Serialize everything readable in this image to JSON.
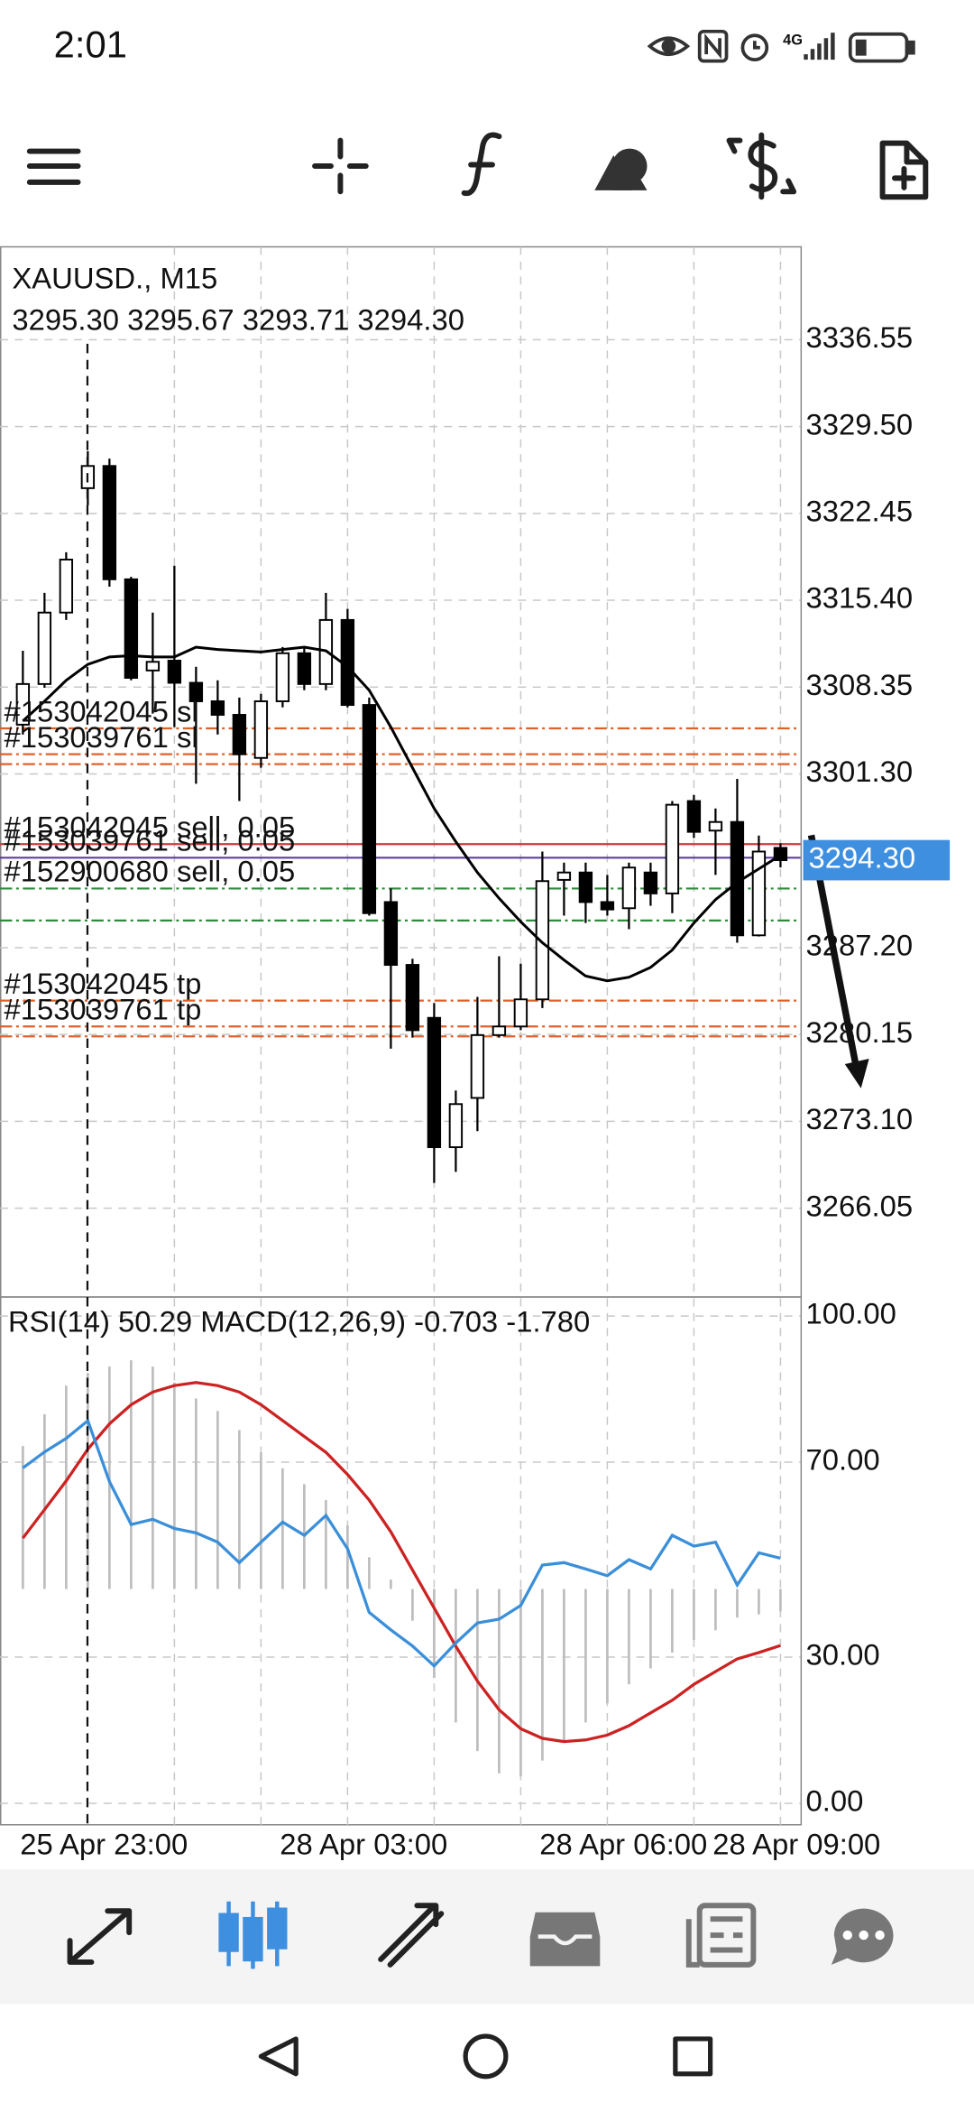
{
  "status_bar": {
    "time": "2:01",
    "network": "4G"
  },
  "chart": {
    "type": "candlestick",
    "symbol": "XAUUSD., M15",
    "ohlc": "3295.30 3295.67 3293.71 3294.30",
    "ylim": [
      3258.84,
      3344.09
    ],
    "yticks": [
      3336.55,
      {
        "value": 3329.5,
        "label": "3329.50"
      },
      3322.45,
      {
        "value": 3315.4,
        "label": "3315.40"
      },
      3308.35,
      {
        "value": 3301.3,
        "label": "3301.30"
      },
      {
        "value": 3287.2,
        "label": "3287.20"
      },
      3280.15,
      {
        "value": 3273.1,
        "label": "3273.10"
      },
      3266.05
    ],
    "current_price": {
      "value": 3294.3,
      "label": "3294.30",
      "color": "#3f8fe0"
    },
    "open": [
      3305.3,
      3308.6,
      3314.4,
      3324.5,
      3326.3,
      3317.1,
      3309.7,
      3310.5,
      3308.7,
      3307.2,
      3306.1,
      3302.6,
      3307.2,
      3311.1,
      3308.6,
      3313.8,
      3306.9,
      3290.9,
      3285.8,
      3281.5,
      3271.0,
      3275.0,
      3280.1,
      3280.8,
      3283.0,
      3292.7,
      3293.3,
      3290.9,
      3290.4,
      3293.3,
      3291.6,
      3299.1,
      3296.7,
      3297.4,
      3288.2,
      3295.3
    ],
    "high": [
      3311.3,
      3316.0,
      3319.3,
      3327.5,
      3326.9,
      3317.3,
      3314.4,
      3318.2,
      3310.0,
      3308.9,
      3307.5,
      3307.8,
      3311.6,
      3311.6,
      3316.0,
      3314.7,
      3307.5,
      3292.0,
      3286.3,
      3282.7,
      3275.6,
      3283.2,
      3286.5,
      3285.9,
      3295.0,
      3294.1,
      3294.1,
      3293.1,
      3294.1,
      3294.1,
      3299.1,
      3299.6,
      3298.5,
      3300.9,
      3296.3,
      3295.67
    ],
    "low": [
      3304.5,
      3308.3,
      3313.8,
      3323.1,
      3316.5,
      3308.9,
      3306.2,
      3305.1,
      3300.5,
      3304.5,
      3299.1,
      3301.8,
      3306.7,
      3308.1,
      3308.1,
      3306.7,
      3289.8,
      3279.0,
      3279.9,
      3268.1,
      3269.0,
      3272.3,
      3279.9,
      3280.5,
      3282.3,
      3289.8,
      3289.2,
      3289.8,
      3288.7,
      3290.6,
      3290.0,
      3296.1,
      3293.1,
      3287.6,
      3288.1,
      3293.71
    ],
    "close": [
      3308.6,
      3314.4,
      3318.7,
      3326.3,
      3317.1,
      3309.1,
      3310.4,
      3308.7,
      3307.2,
      3306.1,
      3302.9,
      3307.2,
      3311.1,
      3308.6,
      3313.8,
      3306.9,
      3290.0,
      3285.8,
      3280.5,
      3271.0,
      3274.5,
      3280.1,
      3280.8,
      3283.0,
      3292.6,
      3293.3,
      3290.9,
      3290.3,
      3293.7,
      3291.6,
      3298.8,
      3296.6,
      3297.4,
      3288.2,
      3295.0,
      3294.3
    ],
    "ma": {
      "color": "#000000",
      "values": [
        3305.6,
        3307.2,
        3308.9,
        3310.2,
        3310.8,
        3310.9,
        3310.8,
        3310.8,
        3311.6,
        3311.4,
        3311.3,
        3311.2,
        3311.4,
        3311.6,
        3311.3,
        3310.0,
        3308.1,
        3305.1,
        3301.8,
        3298.5,
        3295.8,
        3293.3,
        3291.2,
        3289.3,
        3287.6,
        3286.2,
        3284.9,
        3284.5,
        3284.8,
        3285.6,
        3287.0,
        3289.2,
        3291.1,
        3292.5,
        3293.6,
        3294.7
      ]
    },
    "orders": [
      {
        "label": "#153042045 sl",
        "price": 3305.0,
        "color": "#e0602a",
        "style": "dashdot"
      },
      {
        "label": "#153039761 sl",
        "price": 3302.9,
        "color": "#e0602a",
        "style": "dashdot"
      },
      {
        "price": 3302.1,
        "color": "#e0602a",
        "style": "dashdot"
      },
      {
        "label": "#153042045 sell, 0.05",
        "price": 3295.6,
        "color": "#c93b3b",
        "style": "solid"
      },
      {
        "label": "#153039761 sell, 0.05",
        "price": 3294.5,
        "color": "#5b3fa0",
        "style": "solid"
      },
      {
        "label": "#152900680 sell, 0.05",
        "price": 3292.0,
        "color": "#2e8b3a",
        "style": "dashdot"
      },
      {
        "price": 3289.4,
        "color": "#2e8b3a",
        "style": "dashdot"
      },
      {
        "label": "#153042045 tp",
        "price": 3282.9,
        "color": "#e0602a",
        "style": "dashdot"
      },
      {
        "label": "#153039761 tp",
        "price": 3280.8,
        "color": "#e0602a",
        "style": "dashdot"
      },
      {
        "price": 3280.0,
        "color": "#e0602a",
        "style": "dashdot"
      }
    ],
    "x_labels": [
      {
        "candle": 3,
        "label": "25 Apr 23:00"
      },
      {
        "candle": 15,
        "label": "28 Apr 03:00"
      },
      {
        "candle": 27,
        "label": "28 Apr 06:00"
      },
      {
        "candle": 35,
        "label": "28 Apr 09:00"
      }
    ]
  },
  "indicator": {
    "title": "RSI(14) 50.29 MACD(12,26,9) -0.703 -1.780",
    "ylim": [
      -4.4,
      103.9
    ],
    "yticks": [
      {
        "value": 100,
        "label": "100.00"
      },
      {
        "value": 70,
        "label": "70.00"
      },
      {
        "value": 30,
        "label": "30.00"
      },
      {
        "value": 0,
        "label": "0.00"
      }
    ],
    "rsi": {
      "color": "#3b8fd9",
      "values": [
        68.8,
        72.1,
        74.9,
        78.5,
        66.0,
        57.2,
        58.3,
        56.4,
        55.5,
        53.6,
        49.4,
        53.6,
        57.7,
        55.0,
        59.1,
        52.2,
        39.2,
        35.6,
        32.3,
        28.2,
        32.9,
        37.0,
        37.8,
        40.6,
        48.9,
        49.4,
        48.1,
        46.7,
        50.0,
        48.1,
        55.0,
        52.8,
        53.6,
        44.8,
        51.4,
        50.29
      ]
    },
    "macd": {
      "ylim": [
        -7.42,
        9.19
      ],
      "histogram_color": "#bdbdbd",
      "signal_color": "#cc2222",
      "histogram": [
        4.5,
        5.5,
        6.4,
        6.8,
        7.0,
        7.2,
        7.0,
        6.5,
        6.0,
        5.6,
        5.0,
        4.3,
        3.8,
        3.3,
        2.8,
        2.0,
        1.0,
        0.3,
        -1.0,
        -2.8,
        -4.2,
        -5.1,
        -5.8,
        -5.9,
        -5.4,
        -4.8,
        -4.2,
        -3.6,
        -3.0,
        -2.5,
        -2.0,
        -1.6,
        -1.3,
        -0.9,
        -0.8,
        -0.703
      ],
      "signal": [
        1.6,
        2.5,
        3.4,
        4.4,
        5.2,
        5.8,
        6.2,
        6.4,
        6.5,
        6.4,
        6.2,
        5.8,
        5.3,
        4.8,
        4.3,
        3.6,
        2.8,
        1.8,
        0.6,
        -0.6,
        -1.8,
        -2.9,
        -3.8,
        -4.4,
        -4.7,
        -4.8,
        -4.75,
        -4.6,
        -4.3,
        -3.9,
        -3.5,
        -3.0,
        -2.6,
        -2.2,
        -2.0,
        -1.78
      ]
    }
  }
}
